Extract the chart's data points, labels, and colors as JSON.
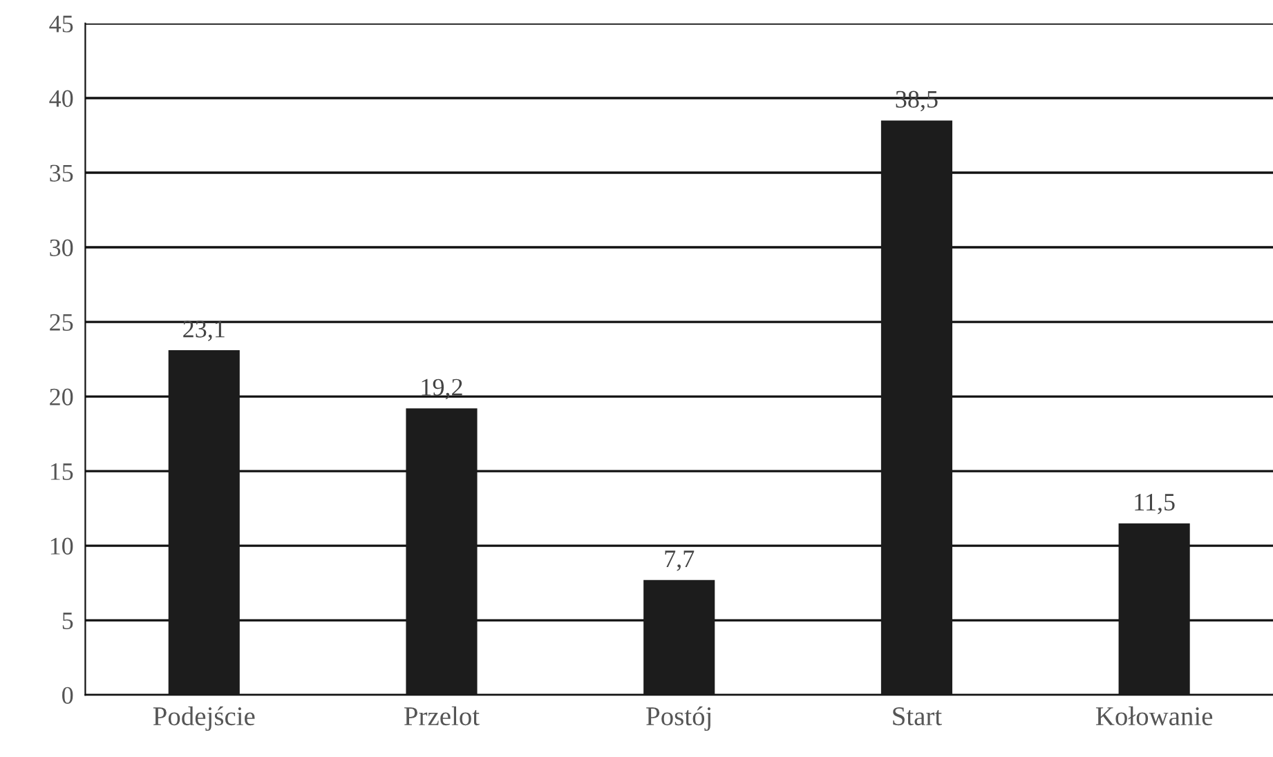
{
  "chart_data": {
    "type": "bar",
    "categories": [
      "Podejście",
      "Przelot",
      "Postój",
      "Start",
      "Kołowanie"
    ],
    "values": [
      23.1,
      19.2,
      7.7,
      38.5,
      11.5
    ],
    "value_labels": [
      "23,1",
      "19,2",
      "7,7",
      "38,5",
      "11,5"
    ],
    "color": "#1c1c1c",
    "ylim": [
      0,
      45
    ],
    "yticks": [
      0,
      5,
      10,
      15,
      20,
      25,
      30,
      35,
      40,
      45
    ],
    "grid": "y",
    "legend": false
  }
}
